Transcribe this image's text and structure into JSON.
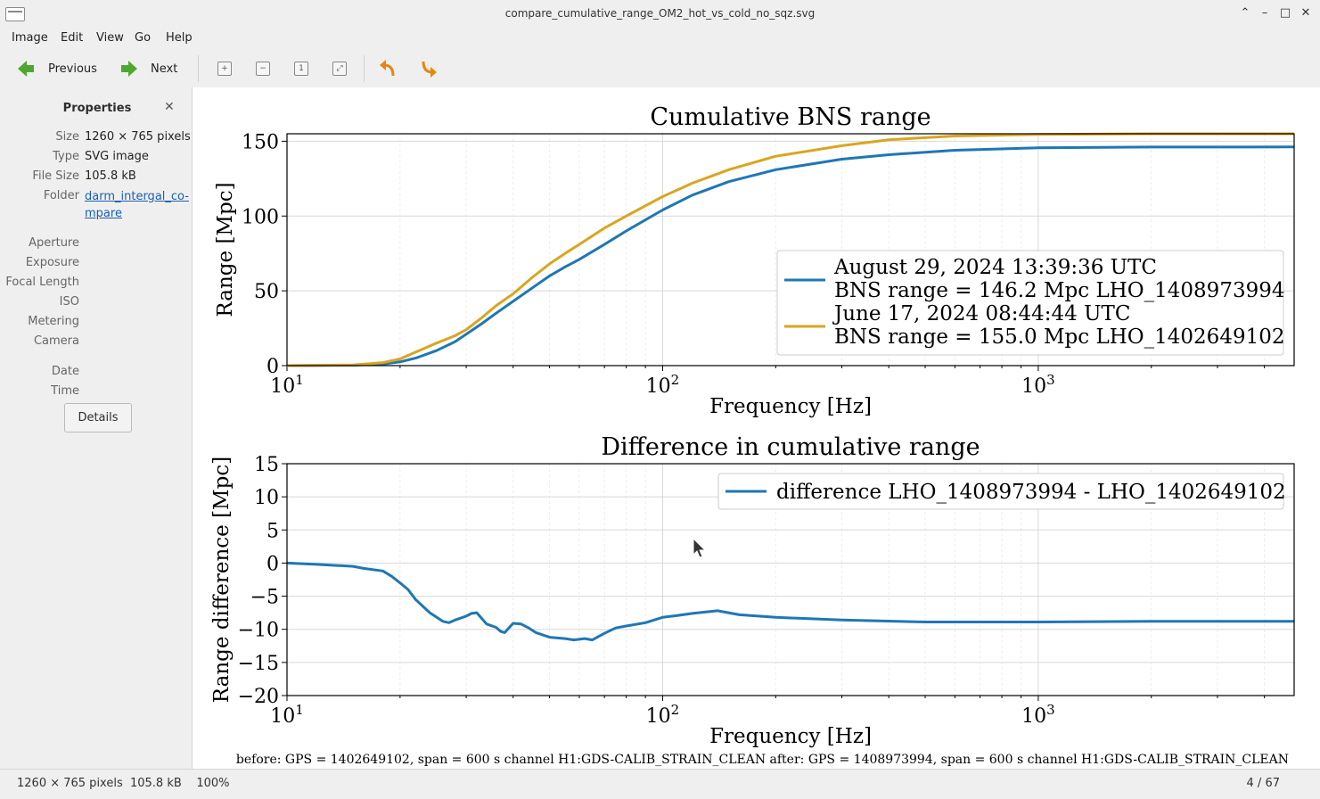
{
  "window": {
    "title": "compare_cumulative_range_OM2_hot_vs_cold_no_sqz.svg"
  },
  "menu": [
    "Image",
    "Edit",
    "View",
    "Go",
    "Help"
  ],
  "toolbar": {
    "previous": "Previous",
    "next": "Next"
  },
  "sidebar": {
    "title": "Properties",
    "props": [
      {
        "label": "Size",
        "value": "1260 × 765 pixels"
      },
      {
        "label": "Type",
        "value": "SVG image"
      },
      {
        "label": "File Size",
        "value": "105.8 kB"
      },
      {
        "label": "Folder",
        "value": "darm_intergal_co-mpare"
      }
    ],
    "exif_labels": [
      "Aperture",
      "Exposure",
      "Focal Length",
      "ISO",
      "Metering",
      "Camera"
    ],
    "date_labels": [
      "Date",
      "Time"
    ],
    "details_button": "Details"
  },
  "status": {
    "left": "1260 × 765 pixels  105.8 kB    100%",
    "right": "4 / 67"
  },
  "chart_data": [
    {
      "type": "line",
      "title": "Cumulative BNS range",
      "xlabel": "Frequency [Hz]",
      "ylabel": "Range [Mpc]",
      "xscale": "log",
      "xlim": [
        10,
        4800
      ],
      "ylim": [
        0,
        155
      ],
      "xticks": [
        10,
        100,
        1000
      ],
      "xtick_labels": [
        [
          "10",
          "1"
        ],
        [
          "10",
          "2"
        ],
        [
          "10",
          "3"
        ]
      ],
      "yticks": [
        0,
        50,
        100,
        150
      ],
      "legend": "center-right",
      "grid": true,
      "series": [
        {
          "name": "August 29, 2024 13:39:36 UTC",
          "name2": "BNS range = 146.2 Mpc LHO_1408973994",
          "color": "#1f77b4",
          "x": [
            10,
            15,
            18,
            20,
            22,
            25,
            28,
            30,
            33,
            36,
            40,
            45,
            50,
            55,
            60,
            70,
            80,
            100,
            120,
            150,
            200,
            300,
            400,
            600,
            1000,
            2000,
            4800
          ],
          "y": [
            0,
            0.3,
            1,
            2.5,
            5,
            10,
            16,
            21,
            28,
            35,
            43,
            52,
            60,
            66,
            71,
            81,
            90,
            104,
            114,
            123,
            131,
            138,
            141,
            144,
            145.6,
            146.1,
            146.2
          ]
        },
        {
          "name": "June 17, 2024 08:44:44 UTC",
          "name2": "BNS range = 155.0 Mpc LHO_1402649102",
          "color": "#daa520",
          "x": [
            10,
            15,
            18,
            20,
            22,
            25,
            28,
            30,
            33,
            36,
            40,
            45,
            50,
            55,
            60,
            70,
            80,
            100,
            120,
            150,
            200,
            300,
            400,
            600,
            1000,
            2000,
            4800
          ],
          "y": [
            0,
            0.5,
            2,
            4.5,
            9,
            15,
            20,
            24,
            32,
            40,
            48,
            59,
            68,
            75,
            81,
            92,
            100,
            113,
            122,
            131,
            140,
            147,
            151,
            153.5,
            154.6,
            155.0,
            155.0
          ]
        }
      ]
    },
    {
      "type": "line",
      "title": "Difference in cumulative range",
      "xlabel": "Frequency [Hz]",
      "ylabel": "Range difference [Mpc]",
      "xscale": "log",
      "xlim": [
        10,
        4800
      ],
      "ylim": [
        -20,
        15
      ],
      "xticks": [
        10,
        100,
        1000
      ],
      "xtick_labels": [
        [
          "10",
          "1"
        ],
        [
          "10",
          "2"
        ],
        [
          "10",
          "3"
        ]
      ],
      "yticks": [
        -20,
        -15,
        -10,
        -5,
        0,
        5,
        10,
        15
      ],
      "legend": "top-right",
      "grid": true,
      "series": [
        {
          "name": "difference LHO_1408973994 - LHO_1402649102",
          "color": "#1f77b4",
          "x": [
            10,
            12,
            14,
            15,
            16,
            18,
            19,
            20,
            21,
            22,
            24,
            26,
            27,
            28,
            30,
            31,
            32,
            34,
            36,
            37,
            38,
            40,
            42,
            44,
            46,
            50,
            55,
            58,
            62,
            65,
            70,
            75,
            80,
            90,
            100,
            110,
            120,
            140,
            160,
            200,
            300,
            500,
            1000,
            2000,
            4800
          ],
          "y": [
            0,
            -0.2,
            -0.4,
            -0.5,
            -0.8,
            -1.2,
            -2,
            -3,
            -4,
            -5.5,
            -7.5,
            -8.8,
            -9,
            -8.6,
            -8,
            -7.6,
            -7.5,
            -9.2,
            -9.7,
            -10.3,
            -10.5,
            -9.1,
            -9.2,
            -9.8,
            -10.5,
            -11.2,
            -11.4,
            -11.6,
            -11.4,
            -11.6,
            -10.6,
            -9.8,
            -9.5,
            -9,
            -8.2,
            -7.9,
            -7.6,
            -7.2,
            -7.8,
            -8.2,
            -8.6,
            -8.9,
            -8.9,
            -8.8,
            -8.8
          ]
        }
      ]
    }
  ],
  "footnote": "before: GPS = 1402649102, span = 600 s channel H1:GDS-CALIB_STRAIN_CLEAN after: GPS = 1408973994, span = 600 s channel H1:GDS-CALIB_STRAIN_CLEAN"
}
